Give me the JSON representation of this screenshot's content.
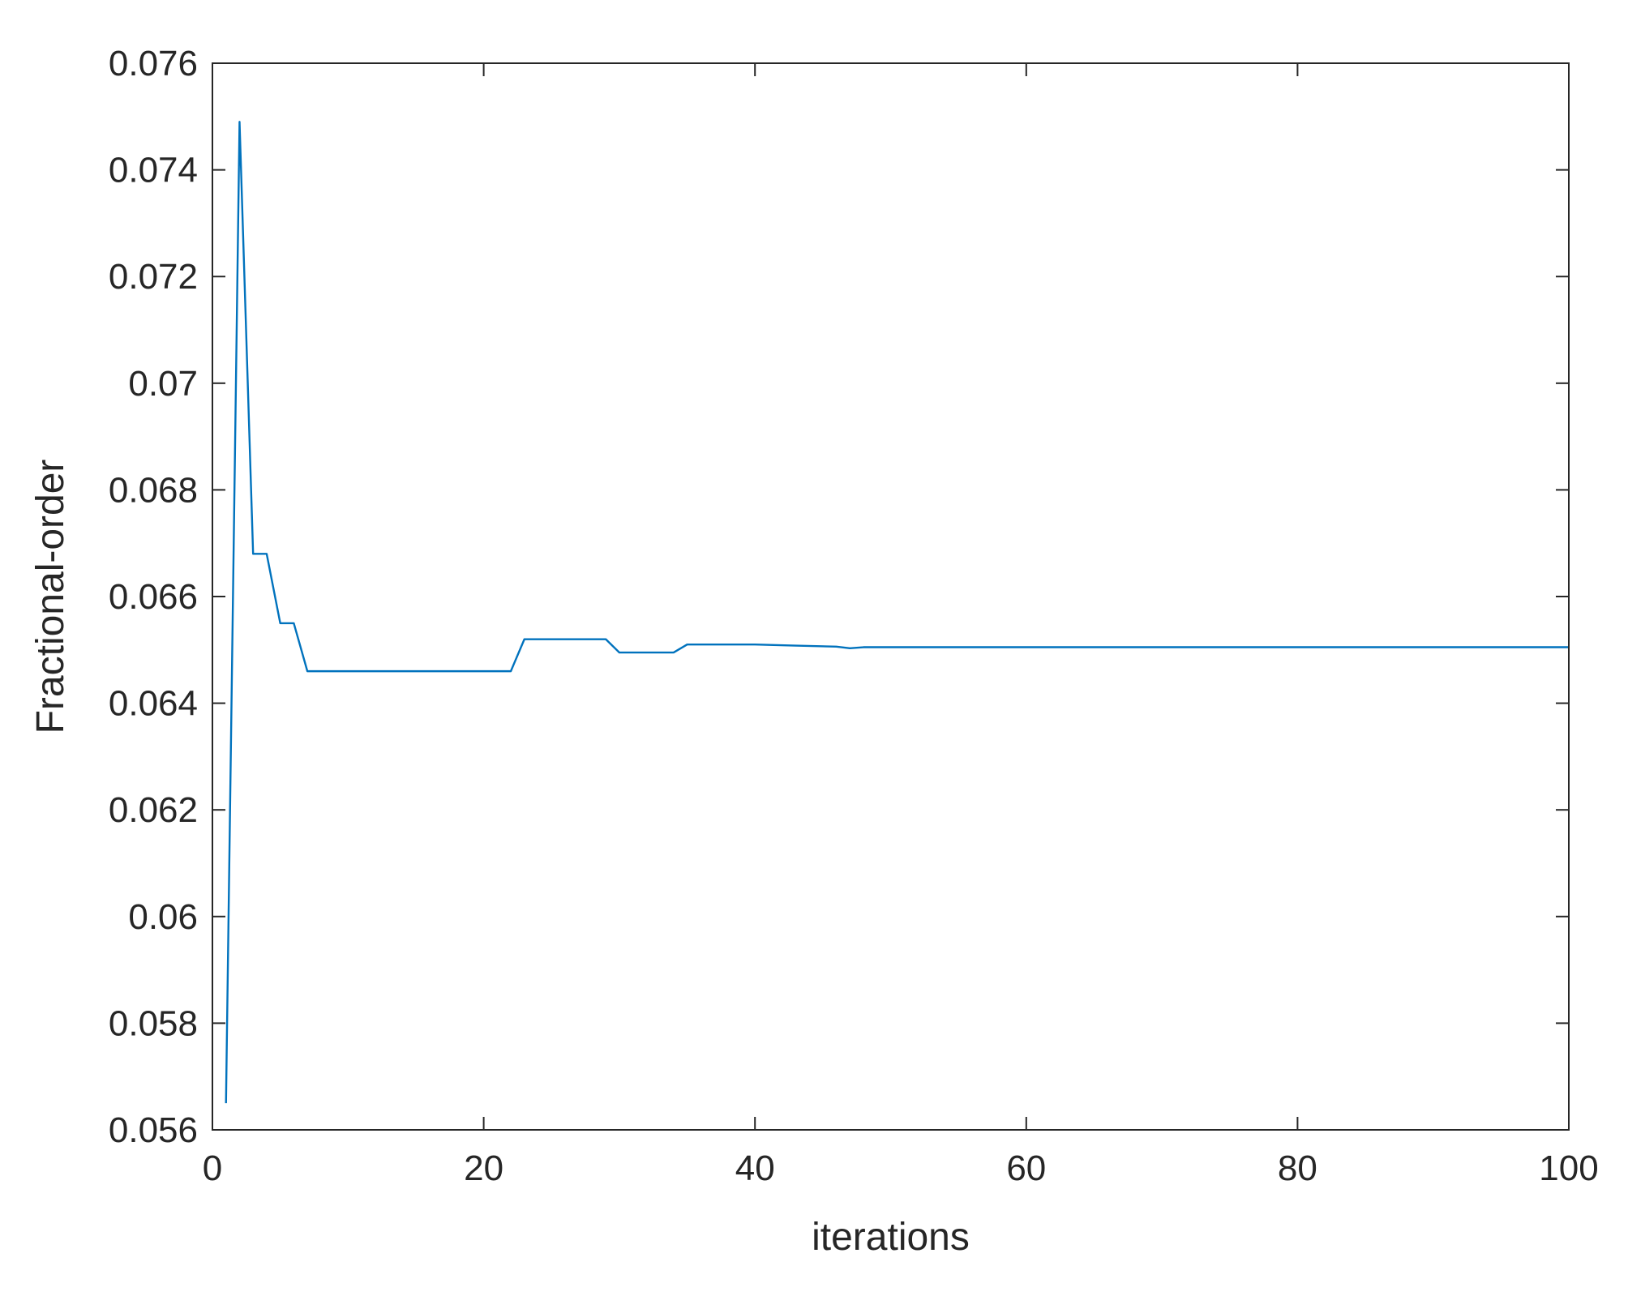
{
  "chart_data": {
    "type": "line",
    "title": "",
    "xlabel": "iterations",
    "ylabel": "Fractional-order",
    "xlim": [
      0,
      100
    ],
    "ylim": [
      0.056,
      0.076
    ],
    "xticks": [
      0,
      20,
      40,
      60,
      80,
      100
    ],
    "xtick_labels": [
      "0",
      "20",
      "40",
      "60",
      "80",
      "100"
    ],
    "yticks": [
      0.056,
      0.058,
      0.06,
      0.062,
      0.064,
      0.066,
      0.068,
      0.07,
      0.072,
      0.074,
      0.076
    ],
    "ytick_labels": [
      "0.056",
      "0.058",
      "0.06",
      "0.062",
      "0.064",
      "0.066",
      "0.068",
      "0.07",
      "0.072",
      "0.074",
      "0.076"
    ],
    "grid": false,
    "box": true,
    "line_color": "#0072BD",
    "axes_color": "#262626",
    "series": [
      {
        "x": [
          1,
          2,
          3,
          4,
          5,
          6,
          7,
          8,
          12,
          16,
          20,
          22,
          23,
          25,
          27,
          29,
          30,
          32,
          34,
          35,
          37,
          40,
          43,
          46,
          47,
          48,
          50,
          60,
          70,
          80,
          90,
          100
        ],
        "y": [
          0.0565,
          0.0749,
          0.0668,
          0.0668,
          0.0655,
          0.0655,
          0.0646,
          0.0646,
          0.0646,
          0.0646,
          0.0646,
          0.0646,
          0.0652,
          0.0652,
          0.0652,
          0.0652,
          0.06495,
          0.06495,
          0.06495,
          0.0651,
          0.0651,
          0.0651,
          0.06508,
          0.06506,
          0.06503,
          0.06505,
          0.06505,
          0.06505,
          0.06505,
          0.06505,
          0.06505,
          0.06505
        ]
      }
    ]
  }
}
